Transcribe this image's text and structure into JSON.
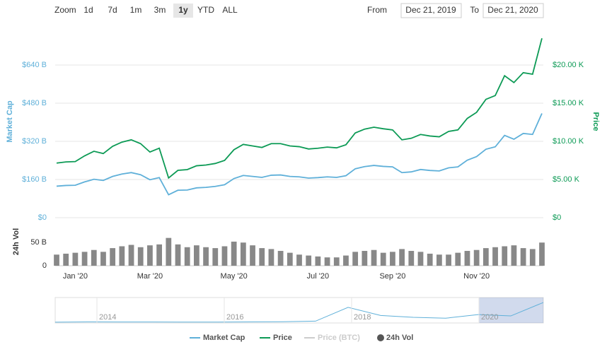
{
  "chart_data": {
    "type": "line",
    "controls": {
      "zoom_label": "Zoom",
      "buttons": [
        "1d",
        "7d",
        "1m",
        "3m",
        "1y",
        "YTD",
        "ALL"
      ],
      "selected": "1y",
      "from_label": "From",
      "from": "Dec 21, 2019",
      "to_label": "To",
      "to": "Dec 21, 2020"
    },
    "categories": [
      null,
      null,
      "Jan '20",
      null,
      null,
      null,
      null,
      null,
      null,
      null,
      "Mar '20",
      null,
      null,
      null,
      null,
      null,
      null,
      null,
      null,
      "May '20",
      null,
      null,
      null,
      null,
      null,
      null,
      null,
      null,
      "Jul '20",
      null,
      null,
      null,
      null,
      null,
      null,
      null,
      "Sep '20",
      null,
      null,
      null,
      null,
      null,
      null,
      null,
      null,
      "Nov '20",
      null,
      null,
      null,
      null,
      null,
      null,
      null
    ],
    "ylabel": "Market Cap",
    "y2label": "Price",
    "y3label": "24h Vol",
    "ylim": [
      0,
      800
    ],
    "yticks": [
      {
        "value": 0,
        "label": "$0"
      },
      {
        "value": 160,
        "label": "$160 B"
      },
      {
        "value": 320,
        "label": "$320 B"
      },
      {
        "value": 480,
        "label": "$480 B"
      },
      {
        "value": 640,
        "label": "$640 B"
      }
    ],
    "y2lim": [
      0,
      25000
    ],
    "y2ticks": [
      {
        "value": 0,
        "label": "$0"
      },
      {
        "value": 5000,
        "label": "$5.00 K"
      },
      {
        "value": 10000,
        "label": "$10.00 K"
      },
      {
        "value": 15000,
        "label": "$15.00 K"
      },
      {
        "value": 20000,
        "label": "$20.00 K"
      }
    ],
    "y3lim": [
      0,
      90
    ],
    "y3ticks": [
      0,
      {
        "value": 50,
        "label": "50 B"
      }
    ],
    "grid": true,
    "series": [
      {
        "name": "Market Cap",
        "color": "#5fb0d9",
        "axis": "y",
        "values": [
          132,
          135,
          136,
          150,
          161,
          156,
          173,
          183,
          189,
          180,
          159,
          168,
          96,
          115,
          116,
          125,
          127,
          131,
          138,
          164,
          177,
          173,
          169,
          178,
          179,
          173,
          171,
          166,
          168,
          171,
          169,
          176,
          205,
          214,
          219,
          215,
          213,
          189,
          192,
          202,
          198,
          196,
          209,
          213,
          241,
          256,
          287,
          297,
          345,
          329,
          353,
          349,
          437
        ]
      },
      {
        "name": "Price",
        "color": "#0c9a55",
        "axis": "y2",
        "values": [
          7150,
          7300,
          7350,
          8100,
          8700,
          8400,
          9350,
          9900,
          10200,
          9700,
          8600,
          9100,
          5200,
          6200,
          6300,
          6800,
          6900,
          7100,
          7500,
          8900,
          9600,
          9400,
          9200,
          9700,
          9700,
          9400,
          9300,
          9000,
          9100,
          9250,
          9150,
          9550,
          11100,
          11600,
          11850,
          11650,
          11500,
          10200,
          10400,
          10900,
          10700,
          10600,
          11300,
          11500,
          13000,
          13800,
          15500,
          16000,
          18600,
          17700,
          19000,
          18800,
          23500
        ]
      },
      {
        "name": "24h Vol",
        "color": "#888888",
        "axis": "y3",
        "type": "bar",
        "values": [
          24,
          26,
          28,
          30,
          34,
          30,
          38,
          42,
          45,
          40,
          44,
          46,
          60,
          46,
          40,
          44,
          40,
          38,
          42,
          52,
          50,
          44,
          38,
          36,
          32,
          28,
          24,
          22,
          20,
          18,
          18,
          22,
          30,
          32,
          34,
          28,
          30,
          36,
          32,
          30,
          26,
          24,
          24,
          28,
          32,
          34,
          38,
          40,
          42,
          44,
          38,
          36,
          50
        ]
      }
    ],
    "inactive_legend": [
      {
        "name": "Price (BTC)",
        "color": "#cccccc"
      }
    ],
    "navigator": {
      "labels": [
        "2014",
        "2016",
        "2018",
        "2020"
      ],
      "ylim": [
        0,
        500
      ],
      "color": "#5fb0d9",
      "values": [
        1,
        8,
        6,
        5,
        3,
        4,
        7,
        12,
        25,
        330,
        150,
        110,
        90,
        170,
        140,
        437
      ]
    }
  }
}
